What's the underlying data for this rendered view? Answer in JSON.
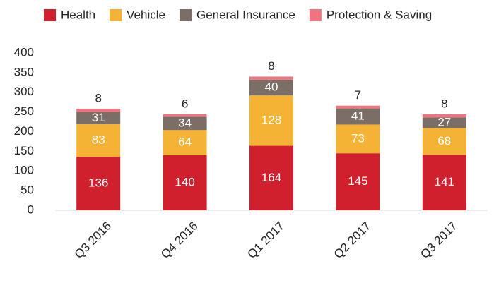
{
  "chart_data": {
    "type": "stacked_bar",
    "categories": [
      "Q3 2016",
      "Q4 2016",
      "Q1 2017",
      "Q2 2017",
      "Q3 2017"
    ],
    "series": [
      {
        "name": "Health",
        "color": "#d0202e",
        "values": [
          136,
          140,
          164,
          145,
          141
        ]
      },
      {
        "name": "Vehicle",
        "color": "#f5b335",
        "values": [
          83,
          64,
          128,
          73,
          68
        ]
      },
      {
        "name": "General Insurance",
        "color": "#7b6e66",
        "values": [
          31,
          34,
          40,
          41,
          27
        ]
      },
      {
        "name": "Protection & Saving",
        "color": "#ef7480",
        "values": [
          8,
          6,
          8,
          7,
          8
        ]
      }
    ],
    "ylim": [
      0,
      400
    ],
    "yticks": [
      0,
      50,
      100,
      150,
      200,
      250,
      300,
      350,
      400
    ],
    "grid": false,
    "legend": "top"
  }
}
